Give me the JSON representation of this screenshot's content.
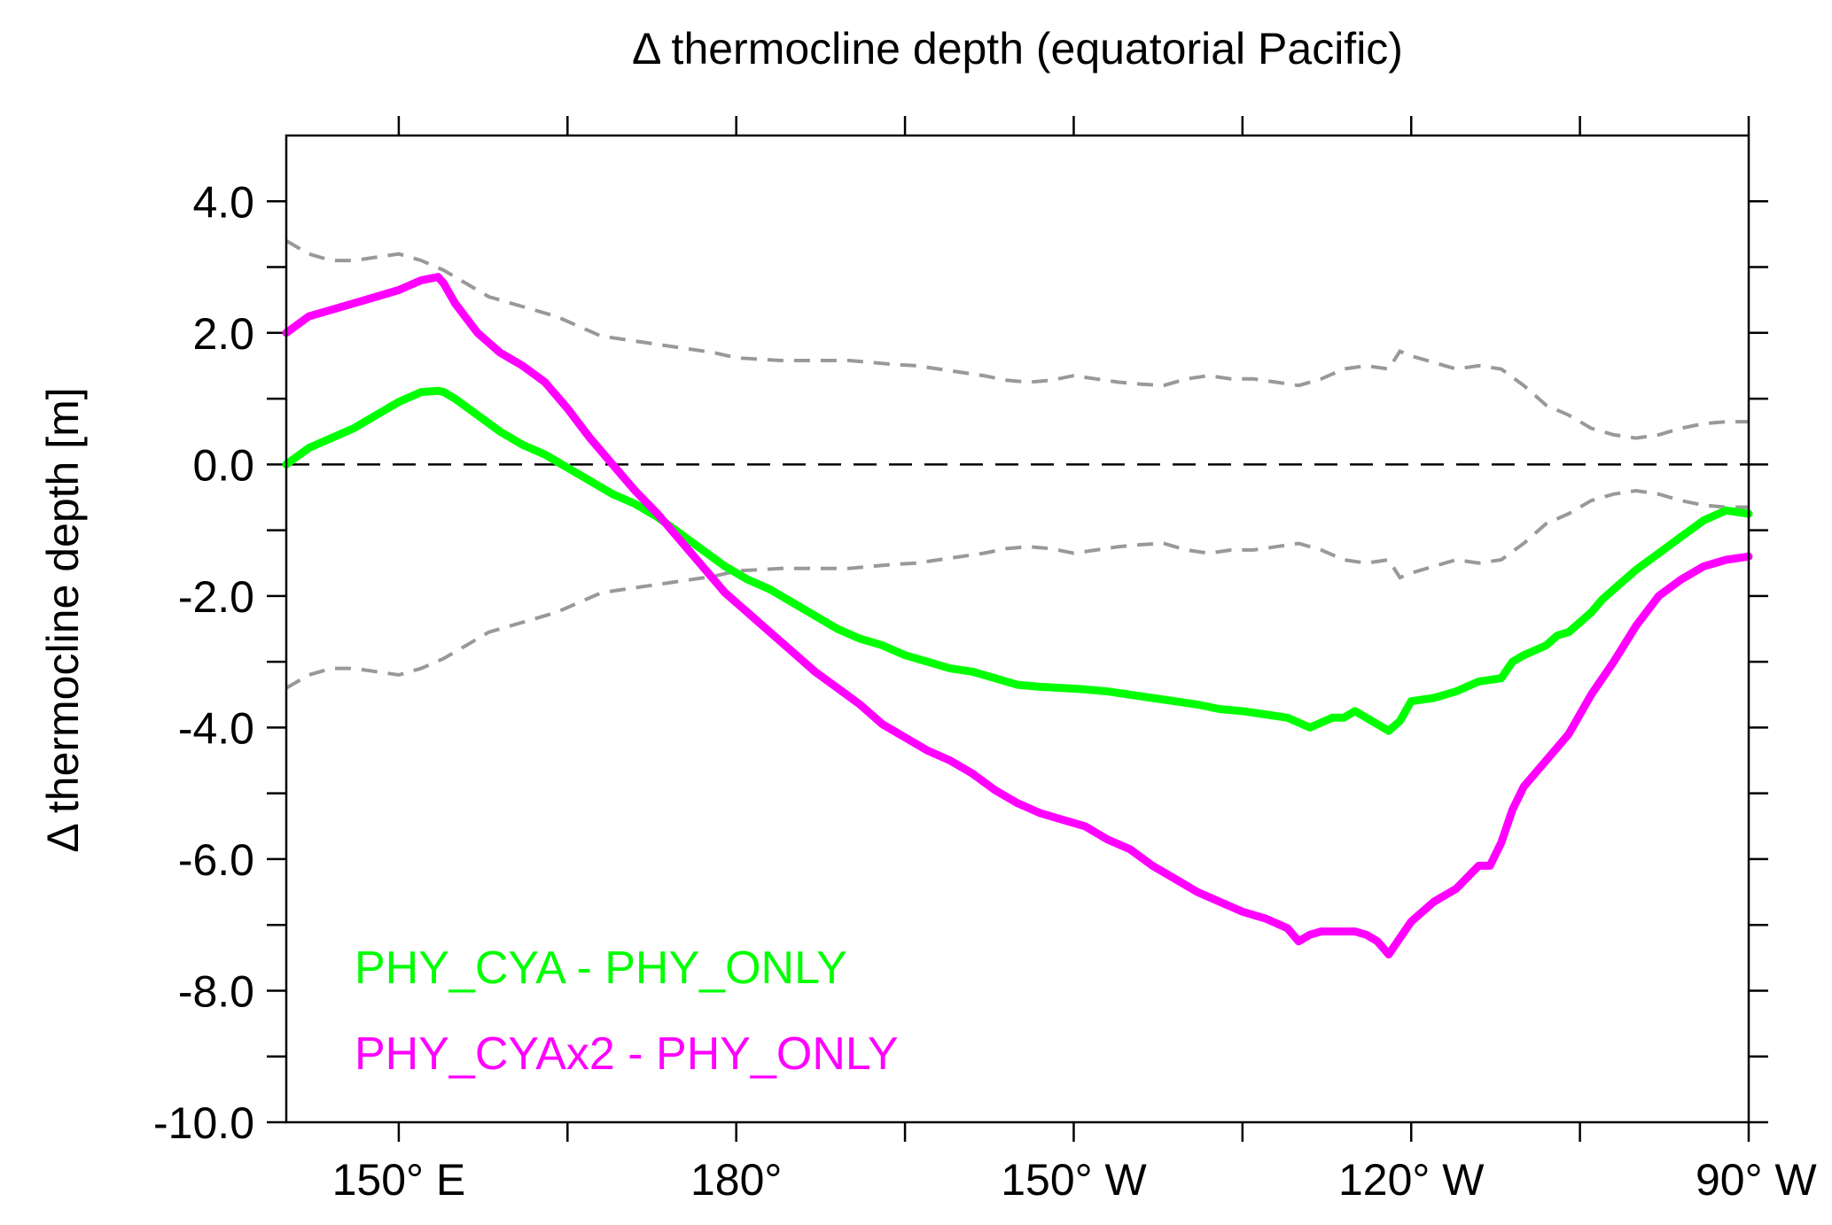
{
  "chart_data": {
    "type": "line",
    "title": "Δ thermocline depth (equatorial Pacific)",
    "xlabel": "",
    "ylabel": "Δ thermocline depth [m]",
    "xlim": [
      140,
      270
    ],
    "ylim": [
      -10,
      5
    ],
    "x_ticks": [
      {
        "value": 150,
        "label": "150° E"
      },
      {
        "value": 180,
        "label": "180°"
      },
      {
        "value": 210,
        "label": "150° W"
      },
      {
        "value": 240,
        "label": "120° W"
      },
      {
        "value": 270,
        "label": "90° W"
      }
    ],
    "x_minor_ticks": [
      165,
      195,
      225,
      255
    ],
    "y_ticks": [
      {
        "value": 4,
        "label": "4.0"
      },
      {
        "value": 2,
        "label": "2.0"
      },
      {
        "value": 0,
        "label": "0.0"
      },
      {
        "value": -2,
        "label": "-2.0"
      },
      {
        "value": -4,
        "label": "-4.0"
      },
      {
        "value": -6,
        "label": "-6.0"
      },
      {
        "value": -8,
        "label": "-8.0"
      },
      {
        "value": -10,
        "label": "-10.0"
      }
    ],
    "y_minor_ticks": [
      3,
      1,
      -1,
      -3,
      -5,
      -7,
      -9
    ],
    "zero_line": 0,
    "colors": {
      "cya": "#00ff00",
      "cyax2": "#ff00ff",
      "envelope": "#999999",
      "zero": "#000000"
    },
    "series": [
      {
        "name": "PHY_CYA - PHY_ONLY",
        "color": "#00ff00",
        "x": [
          140,
          142,
          144,
          146,
          148,
          150,
          152,
          153.5,
          154,
          154.5,
          155,
          157,
          159,
          161,
          163,
          165,
          167,
          169,
          171,
          173,
          175,
          177,
          179,
          181,
          183,
          185,
          187,
          189,
          191,
          193,
          195,
          197,
          199,
          201,
          203,
          205,
          207,
          209,
          211,
          213,
          215,
          217,
          219,
          221,
          223,
          225,
          227,
          229,
          231,
          233,
          234,
          235,
          236,
          237,
          238,
          239,
          240,
          242,
          243,
          244,
          246,
          248,
          249,
          250,
          252,
          253,
          254,
          255,
          256,
          257,
          258,
          260,
          262,
          264,
          266,
          268,
          270
        ],
        "values": [
          0.0,
          0.25,
          0.4,
          0.55,
          0.75,
          0.95,
          1.1,
          1.12,
          1.1,
          1.05,
          1.0,
          0.75,
          0.5,
          0.3,
          0.15,
          -0.05,
          -0.25,
          -0.45,
          -0.6,
          -0.8,
          -1.05,
          -1.3,
          -1.55,
          -1.75,
          -1.9,
          -2.1,
          -2.3,
          -2.5,
          -2.65,
          -2.75,
          -2.9,
          -3.0,
          -3.1,
          -3.15,
          -3.25,
          -3.35,
          -3.38,
          -3.4,
          -3.42,
          -3.45,
          -3.5,
          -3.55,
          -3.6,
          -3.65,
          -3.72,
          -3.75,
          -3.8,
          -3.85,
          -4.0,
          -3.85,
          -3.85,
          -3.75,
          -3.85,
          -3.95,
          -4.05,
          -3.9,
          -3.6,
          -3.55,
          -3.5,
          -3.45,
          -3.3,
          -3.25,
          -3.0,
          -2.9,
          -2.75,
          -2.6,
          -2.55,
          -2.4,
          -2.25,
          -2.05,
          -1.9,
          -1.6,
          -1.35,
          -1.1,
          -0.85,
          -0.7,
          -0.75
        ]
      },
      {
        "name": "PHY_CYAx2 - PHY_ONLY",
        "color": "#ff00ff",
        "x": [
          140,
          142,
          144,
          146,
          148,
          150,
          152,
          153.5,
          154,
          154.5,
          155,
          157,
          159,
          161,
          163,
          165,
          167,
          169,
          171,
          173,
          175,
          177,
          179,
          181,
          183,
          185,
          187,
          189,
          191,
          193,
          195,
          197,
          199,
          201,
          203,
          205,
          207,
          209,
          211,
          213,
          215,
          217,
          219,
          221,
          223,
          225,
          227,
          229,
          230,
          231,
          232,
          234,
          235,
          236,
          237,
          238,
          239,
          240,
          242,
          244,
          246,
          247,
          248,
          249,
          250,
          252,
          254,
          256,
          258,
          260,
          262,
          264,
          266,
          268,
          270
        ],
        "values": [
          2.0,
          2.25,
          2.35,
          2.45,
          2.55,
          2.65,
          2.8,
          2.85,
          2.75,
          2.6,
          2.45,
          2.0,
          1.7,
          1.5,
          1.25,
          0.85,
          0.4,
          0.0,
          -0.4,
          -0.75,
          -1.15,
          -1.55,
          -1.95,
          -2.25,
          -2.55,
          -2.85,
          -3.15,
          -3.4,
          -3.65,
          -3.95,
          -4.15,
          -4.35,
          -4.5,
          -4.7,
          -4.95,
          -5.15,
          -5.3,
          -5.4,
          -5.5,
          -5.7,
          -5.85,
          -6.1,
          -6.3,
          -6.5,
          -6.65,
          -6.8,
          -6.9,
          -7.05,
          -7.25,
          -7.15,
          -7.1,
          -7.1,
          -7.1,
          -7.15,
          -7.25,
          -7.45,
          -7.2,
          -6.95,
          -6.65,
          -6.45,
          -6.1,
          -6.1,
          -5.75,
          -5.25,
          -4.9,
          -4.5,
          -4.1,
          -3.5,
          -3.0,
          -2.45,
          -2.0,
          -1.75,
          -1.55,
          -1.45,
          -1.4
        ]
      }
    ],
    "envelope": {
      "style": "dashed",
      "color": "#999999",
      "x": [
        140,
        142,
        144,
        146,
        148,
        150,
        152,
        154,
        156,
        158,
        160,
        162,
        164,
        166,
        168,
        170,
        172,
        174,
        176,
        178,
        180,
        182,
        184,
        186,
        188,
        190,
        192,
        194,
        196,
        198,
        200,
        202,
        204,
        206,
        208,
        210,
        212,
        214,
        216,
        218,
        220,
        222,
        224,
        226,
        228,
        230,
        232,
        234,
        236,
        238,
        239,
        240,
        242,
        244,
        246,
        248,
        250,
        252,
        254,
        256,
        258,
        260,
        262,
        264,
        266,
        268,
        270
      ],
      "upper": [
        3.4,
        3.2,
        3.1,
        3.1,
        3.15,
        3.2,
        3.1,
        2.95,
        2.75,
        2.55,
        2.45,
        2.35,
        2.25,
        2.1,
        1.95,
        1.9,
        1.85,
        1.8,
        1.75,
        1.7,
        1.62,
        1.6,
        1.58,
        1.58,
        1.58,
        1.58,
        1.55,
        1.52,
        1.5,
        1.45,
        1.4,
        1.35,
        1.28,
        1.25,
        1.28,
        1.35,
        1.3,
        1.25,
        1.22,
        1.2,
        1.3,
        1.35,
        1.3,
        1.3,
        1.25,
        1.2,
        1.3,
        1.45,
        1.5,
        1.45,
        1.72,
        1.65,
        1.55,
        1.45,
        1.5,
        1.45,
        1.2,
        0.9,
        0.75,
        0.55,
        0.45,
        0.4,
        0.45,
        0.55,
        0.62,
        0.65,
        0.65
      ],
      "lower": [
        -3.4,
        -3.2,
        -3.1,
        -3.1,
        -3.15,
        -3.2,
        -3.1,
        -2.95,
        -2.75,
        -2.55,
        -2.45,
        -2.35,
        -2.25,
        -2.1,
        -1.95,
        -1.9,
        -1.85,
        -1.8,
        -1.75,
        -1.7,
        -1.62,
        -1.6,
        -1.58,
        -1.58,
        -1.58,
        -1.58,
        -1.55,
        -1.52,
        -1.5,
        -1.45,
        -1.4,
        -1.35,
        -1.28,
        -1.25,
        -1.28,
        -1.35,
        -1.3,
        -1.25,
        -1.22,
        -1.2,
        -1.3,
        -1.35,
        -1.3,
        -1.3,
        -1.25,
        -1.2,
        -1.3,
        -1.45,
        -1.5,
        -1.45,
        -1.72,
        -1.65,
        -1.55,
        -1.45,
        -1.5,
        -1.45,
        -1.2,
        -0.9,
        -0.75,
        -0.55,
        -0.45,
        -0.4,
        -0.45,
        -0.55,
        -0.62,
        -0.65,
        -0.65
      ]
    },
    "legend": {
      "placement": "bottom-left",
      "entries": [
        {
          "label": "PHY_CYA - PHY_ONLY",
          "color": "#00ff00"
        },
        {
          "label": "PHY_CYAx2 - PHY_ONLY",
          "color": "#ff00ff"
        }
      ]
    }
  }
}
